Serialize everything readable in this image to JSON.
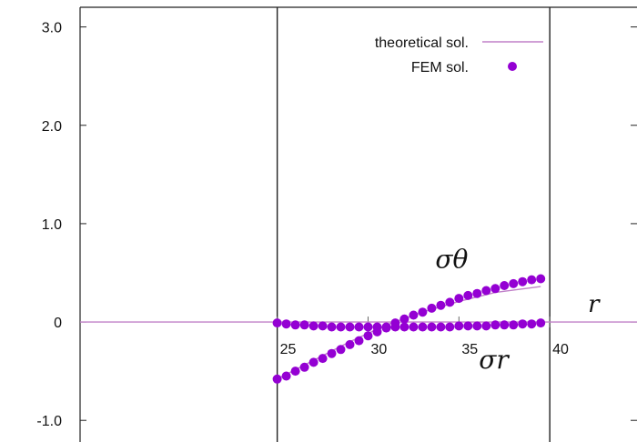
{
  "chart_data": {
    "type": "scatter",
    "title": "",
    "xlabel": "r",
    "ylabel": "",
    "xlim": [
      14.15,
      44.8
    ],
    "ylim": [
      -1.22,
      3.2
    ],
    "yticks": [
      {
        "value": 3.0,
        "label": "3.0"
      },
      {
        "value": 2.0,
        "label": "2.0"
      },
      {
        "value": 1.0,
        "label": "1.0"
      },
      {
        "value": 0.0,
        "label": "0"
      },
      {
        "value": -1.0,
        "label": "-1.0"
      }
    ],
    "xticks": [
      {
        "value": 25,
        "label": "25"
      },
      {
        "value": 30,
        "label": "30"
      },
      {
        "value": 35,
        "label": "35"
      },
      {
        "value": 40,
        "label": "40"
      }
    ],
    "vertical_lines": [
      25,
      40
    ],
    "legend_position": "top-right",
    "grid": false,
    "series": [
      {
        "name": "theoretical sol.",
        "kind": "line",
        "color": "#c080c8",
        "lines": [
          {
            "x": [
              14.15,
              44.8
            ],
            "y": [
              0,
              0
            ]
          },
          {
            "x": [
              25,
              27,
              29,
              31,
              33,
              35,
              37,
              39.5
            ],
            "y": [
              -0.58,
              -0.39,
              -0.2,
              -0.03,
              0.1,
              0.21,
              0.3,
              0.36
            ]
          }
        ]
      },
      {
        "name": "FEM sol.",
        "kind": "points",
        "color": "#9400d3",
        "curves": [
          {
            "label": "σθ",
            "x": [
              25.0,
              25.5,
              26.0,
              26.5,
              27.0,
              27.5,
              28.0,
              28.5,
              29.0,
              29.5,
              30.0,
              30.5,
              31.0,
              31.5,
              32.0,
              32.5,
              33.0,
              33.5,
              34.0,
              34.5,
              35.0,
              35.5,
              36.0,
              36.5,
              37.0,
              37.5,
              38.0,
              38.5,
              39.0,
              39.5
            ],
            "y": [
              -0.58,
              -0.55,
              -0.5,
              -0.46,
              -0.41,
              -0.37,
              -0.32,
              -0.28,
              -0.23,
              -0.19,
              -0.14,
              -0.1,
              -0.06,
              -0.01,
              0.03,
              0.07,
              0.1,
              0.14,
              0.17,
              0.2,
              0.24,
              0.27,
              0.29,
              0.32,
              0.34,
              0.37,
              0.39,
              0.41,
              0.43,
              0.44
            ]
          },
          {
            "label": "σr",
            "x": [
              25.0,
              25.5,
              26.0,
              26.5,
              27.0,
              27.5,
              28.0,
              28.5,
              29.0,
              29.5,
              30.0,
              30.5,
              31.0,
              31.5,
              32.0,
              32.5,
              33.0,
              33.5,
              34.0,
              34.5,
              35.0,
              35.5,
              36.0,
              36.5,
              37.0,
              37.5,
              38.0,
              38.5,
              39.0,
              39.5
            ],
            "y": [
              -0.01,
              -0.02,
              -0.03,
              -0.03,
              -0.04,
              -0.04,
              -0.05,
              -0.05,
              -0.05,
              -0.05,
              -0.05,
              -0.05,
              -0.05,
              -0.05,
              -0.05,
              -0.05,
              -0.05,
              -0.05,
              -0.05,
              -0.05,
              -0.04,
              -0.04,
              -0.04,
              -0.04,
              -0.03,
              -0.03,
              -0.03,
              -0.02,
              -0.02,
              -0.01
            ]
          }
        ]
      }
    ],
    "annotations": [
      {
        "text": "σθ",
        "x": 33.7,
        "y": 0.55
      },
      {
        "text": "σr",
        "x": 36.1,
        "y": -0.47
      },
      {
        "text": "r",
        "x": 42.1,
        "y": 0.1
      }
    ]
  }
}
